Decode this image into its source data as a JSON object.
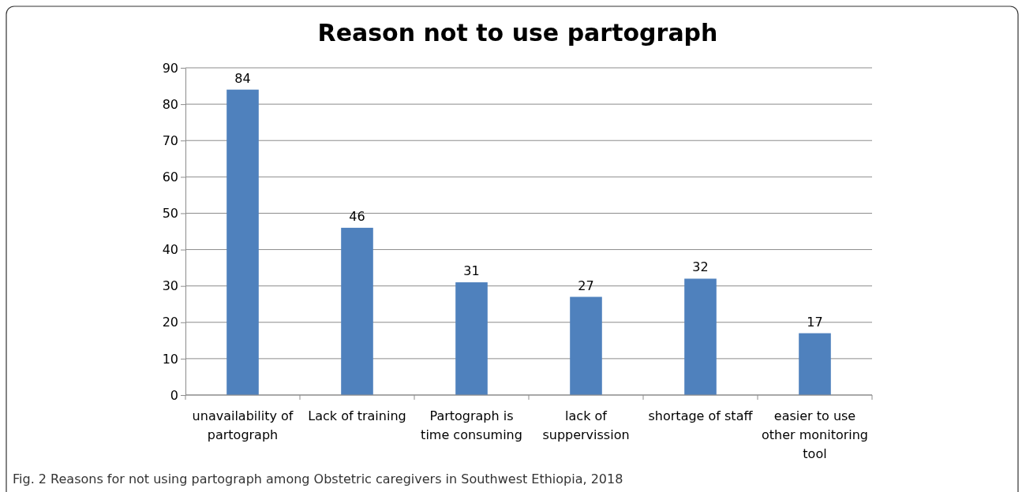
{
  "chart_data": {
    "type": "bar",
    "title": "Reason not to use partograph",
    "categories": [
      "unavailability of partograph",
      "Lack of training",
      "Partograph is time consuming",
      "lack of suppervission",
      "shortage of staff",
      "easier to use other monitoring tool"
    ],
    "values": [
      84,
      46,
      31,
      27,
      32,
      17
    ],
    "color": "#4f81bd",
    "data_labels": true,
    "ylim": [
      0,
      90
    ],
    "yticks": [
      0,
      10,
      20,
      30,
      40,
      50,
      60,
      70,
      80,
      90
    ],
    "grid": "y",
    "annotations": [
      "Fig. 2 Reasons for not using partograph among Obstetric caregivers in Southwest Ethiopia, 2018"
    ]
  }
}
